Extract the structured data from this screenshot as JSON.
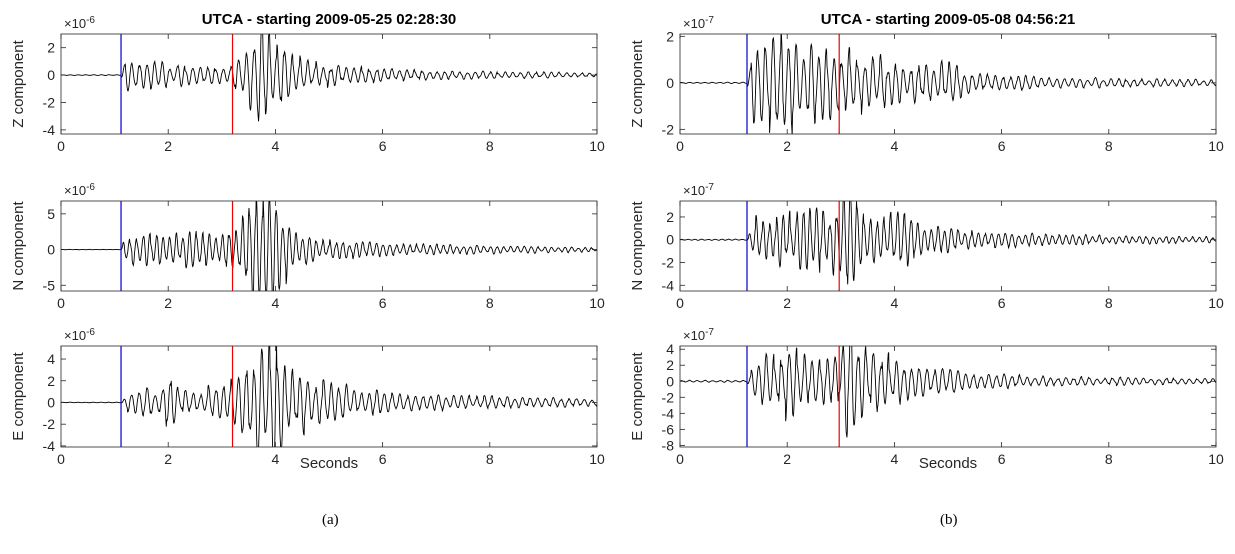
{
  "chart_data": [
    {
      "type": "line",
      "panel": "a",
      "title": "UTCA - starting 2009-05-25 02:28:30",
      "xlabel": "Seconds",
      "xlim": [
        0,
        10
      ],
      "xticks": [
        0,
        2,
        4,
        6,
        8,
        10
      ],
      "p_pick": 1.12,
      "s_pick": 3.2,
      "pick_colors": {
        "p": "#0000cc",
        "s": "#ee0000"
      },
      "trace_color": "#000000",
      "subplots": [
        {
          "ylabel": "Z component",
          "exponent": "×10",
          "exponent_power": "-6",
          "ylim": [
            -4.3,
            3.0
          ],
          "yticks": [
            -4,
            -2,
            0,
            2
          ],
          "envelope": [
            [
              0,
              0.02
            ],
            [
              1.12,
              0.02
            ],
            [
              1.2,
              1.0
            ],
            [
              1.5,
              0.8
            ],
            [
              2.5,
              0.5
            ],
            [
              3.1,
              0.6
            ],
            [
              3.4,
              1.4
            ],
            [
              3.6,
              2.6
            ],
            [
              3.7,
              4.3
            ],
            [
              3.9,
              2.2
            ],
            [
              4.5,
              0.9
            ],
            [
              5.5,
              0.45
            ],
            [
              7,
              0.25
            ],
            [
              10,
              0.12
            ]
          ],
          "freq": 7,
          "seed": 11
        },
        {
          "ylabel": "N component",
          "exponent": "×10",
          "exponent_power": "-6",
          "ylim": [
            -5.8,
            6.8
          ],
          "yticks": [
            -5,
            0,
            5
          ],
          "envelope": [
            [
              0,
              0.02
            ],
            [
              1.12,
              0.02
            ],
            [
              1.2,
              1.5
            ],
            [
              2.0,
              1.8
            ],
            [
              3.0,
              1.8
            ],
            [
              3.3,
              3.0
            ],
            [
              3.7,
              6.5
            ],
            [
              4.05,
              5.8
            ],
            [
              4.3,
              2.0
            ],
            [
              5,
              1.0
            ],
            [
              6.5,
              0.6
            ],
            [
              10,
              0.25
            ]
          ],
          "freq": 8,
          "seed": 23
        },
        {
          "ylabel": "E component",
          "exponent": "×10",
          "exponent_power": "-6",
          "ylim": [
            -4.1,
            5.2
          ],
          "yticks": [
            -4,
            -2,
            0,
            2,
            4
          ],
          "envelope": [
            [
              0,
              0.02
            ],
            [
              1.12,
              0.02
            ],
            [
              1.2,
              0.7
            ],
            [
              1.9,
              1.2
            ],
            [
              2.0,
              2.8
            ],
            [
              2.2,
              0.9
            ],
            [
              3.1,
              1.2
            ],
            [
              3.4,
              3.2
            ],
            [
              3.7,
              4.0
            ],
            [
              4.0,
              5.1
            ],
            [
              4.3,
              2.6
            ],
            [
              5,
              1.3
            ],
            [
              6.5,
              0.6
            ],
            [
              10,
              0.25
            ]
          ],
          "freq": 7,
          "seed": 37
        }
      ]
    },
    {
      "type": "line",
      "panel": "b",
      "title": "UTCA - starting 2009-05-08 04:56:21",
      "xlabel": "Seconds",
      "xlim": [
        0,
        10
      ],
      "xticks": [
        0,
        2,
        4,
        6,
        8,
        10
      ],
      "p_pick": 1.25,
      "s_pick": 2.97,
      "pick_colors": {
        "p": "#0000cc",
        "s": "#ee0000"
      },
      "trace_color": "#000000",
      "subplots": [
        {
          "ylabel": "Z component",
          "exponent": "×10",
          "exponent_power": "-7",
          "ylim": [
            -2.2,
            2.1
          ],
          "yticks": [
            -2,
            0,
            2
          ],
          "envelope": [
            [
              0,
              0.02
            ],
            [
              1.25,
              0.02
            ],
            [
              1.35,
              1.2
            ],
            [
              1.8,
              1.7
            ],
            [
              1.95,
              2.1
            ],
            [
              2.3,
              1.3
            ],
            [
              3.0,
              1.1
            ],
            [
              3.6,
              0.9
            ],
            [
              4.5,
              0.6
            ],
            [
              5.0,
              0.7
            ],
            [
              5.5,
              0.3
            ],
            [
              7,
              0.18
            ],
            [
              10,
              0.1
            ]
          ],
          "freq": 7,
          "seed": 53
        },
        {
          "ylabel": "N component",
          "exponent": "×10",
          "exponent_power": "-7",
          "ylim": [
            -4.5,
            3.4
          ],
          "yticks": [
            -4,
            -2,
            0,
            2
          ],
          "envelope": [
            [
              0,
              0.04
            ],
            [
              1.25,
              0.04
            ],
            [
              1.4,
              1.6
            ],
            [
              2.2,
              1.8
            ],
            [
              2.8,
              2.2
            ],
            [
              3.05,
              3.6
            ],
            [
              3.4,
              2.6
            ],
            [
              3.8,
              1.4
            ],
            [
              4.2,
              2.4
            ],
            [
              4.5,
              1.0
            ],
            [
              5.5,
              0.6
            ],
            [
              7,
              0.35
            ],
            [
              10,
              0.2
            ]
          ],
          "freq": 8,
          "seed": 67
        },
        {
          "ylabel": "E component",
          "exponent": "×10",
          "exponent_power": "-7",
          "ylim": [
            -8.2,
            4.4
          ],
          "yticks": [
            -8,
            -6,
            -4,
            -2,
            0,
            2,
            4
          ],
          "envelope": [
            [
              0,
              0.1
            ],
            [
              1.25,
              0.1
            ],
            [
              1.4,
              2.0
            ],
            [
              1.9,
              3.0
            ],
            [
              2.0,
              4.3
            ],
            [
              2.4,
              2.0
            ],
            [
              3.0,
              2.5
            ],
            [
              3.2,
              7.0
            ],
            [
              3.4,
              3.0
            ],
            [
              3.8,
              2.8
            ],
            [
              4.5,
              1.6
            ],
            [
              5.5,
              0.8
            ],
            [
              7,
              0.45
            ],
            [
              10,
              0.25
            ]
          ],
          "freq": 7,
          "seed": 79
        }
      ]
    }
  ],
  "captions": {
    "a": "(a)",
    "b": "(b)"
  }
}
